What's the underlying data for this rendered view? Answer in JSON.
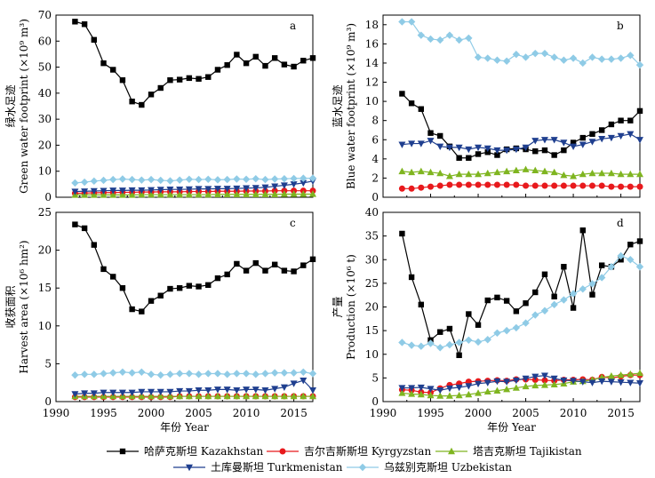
{
  "x_axis_label": "年份 Year",
  "colors": {
    "Kazakhstan": "#000000",
    "Kyrgyzstan": "#e8191c",
    "Tajikistan": "#7fb520",
    "Turkmenistan": "#1f3f8f",
    "Uzbekistan": "#8fcbe6"
  },
  "legend": [
    {
      "key": "Kazakhstan",
      "label": "哈萨克斯坦 Kazakhstan",
      "marker": "square"
    },
    {
      "key": "Kyrgyzstan",
      "label": "吉尔吉斯斯坦 Kyrgyzstan",
      "marker": "circle"
    },
    {
      "key": "Tajikistan",
      "label": "塔吉克斯坦 Tajikistan",
      "marker": "triangle-up"
    },
    {
      "key": "Turkmenistan",
      "label": "土库曼斯坦 Turkmenistan",
      "marker": "triangle-down"
    },
    {
      "key": "Uzbekistan",
      "label": "乌兹别克斯坦 Uzbekistan",
      "marker": "diamond"
    }
  ],
  "chart_data": [
    {
      "id": "a",
      "type": "line",
      "panel_label": "a",
      "ylabel_cn": "绿水足迹",
      "ylabel_en": "Green water footprint (×10⁹ m³)",
      "xlim": [
        1990,
        2017
      ],
      "ylim": [
        0,
        70
      ],
      "xticks": [
        1990,
        1995,
        2000,
        2005,
        2010,
        2015
      ],
      "yticks": [
        0,
        10,
        20,
        30,
        40,
        50,
        60,
        70
      ],
      "show_x_tick_labels": false,
      "x": [
        1992,
        1993,
        1994,
        1995,
        1996,
        1997,
        1998,
        1999,
        2000,
        2001,
        2002,
        2003,
        2004,
        2005,
        2006,
        2007,
        2008,
        2009,
        2010,
        2011,
        2012,
        2013,
        2014,
        2015,
        2016,
        2017
      ],
      "series": [
        {
          "key": "Kazakhstan",
          "values": [
            67.5,
            66.5,
            60.5,
            51.5,
            49.0,
            45.0,
            36.8,
            35.5,
            39.5,
            42.0,
            45.0,
            45.2,
            45.8,
            45.5,
            46.2,
            49.0,
            50.8,
            54.8,
            51.5,
            54.0,
            50.5,
            53.5,
            51.0,
            50.2,
            52.5,
            53.5
          ]
        },
        {
          "key": "Kyrgyzstan",
          "values": [
            1.5,
            1.6,
            1.7,
            1.8,
            1.8,
            1.9,
            1.9,
            2.0,
            2.0,
            2.1,
            2.1,
            2.1,
            2.2,
            2.2,
            2.2,
            2.3,
            2.3,
            2.3,
            2.4,
            2.4,
            2.4,
            2.5,
            2.5,
            2.5,
            2.5,
            2.5
          ]
        },
        {
          "key": "Tajikistan",
          "values": [
            0.9,
            0.9,
            0.9,
            0.9,
            0.9,
            0.9,
            0.9,
            1.0,
            1.0,
            1.0,
            1.0,
            1.0,
            1.0,
            1.0,
            1.0,
            1.1,
            1.1,
            1.1,
            1.1,
            1.1,
            1.1,
            1.1,
            1.2,
            1.2,
            1.2,
            1.2
          ]
        },
        {
          "key": "Turkmenistan",
          "values": [
            2.2,
            2.3,
            2.4,
            2.5,
            2.6,
            2.6,
            2.7,
            2.7,
            2.8,
            2.9,
            3.0,
            3.0,
            3.1,
            3.2,
            3.2,
            3.3,
            3.3,
            3.4,
            3.5,
            3.6,
            3.8,
            4.2,
            4.6,
            5.0,
            5.5,
            6.2
          ]
        },
        {
          "key": "Uzbekistan",
          "values": [
            5.5,
            5.8,
            6.2,
            6.5,
            6.8,
            7.0,
            6.8,
            6.6,
            6.8,
            6.5,
            6.3,
            6.6,
            6.9,
            6.8,
            6.9,
            6.7,
            6.8,
            7.0,
            6.9,
            7.1,
            6.8,
            7.0,
            7.1,
            7.2,
            7.3,
            7.3
          ]
        }
      ]
    },
    {
      "id": "b",
      "type": "line",
      "panel_label": "b",
      "ylabel_cn": "蓝水足迹",
      "ylabel_en": "Blue water footprint (×10⁹ m³)",
      "xlim": [
        1990,
        2017
      ],
      "ylim": [
        0,
        19
      ],
      "xticks": [
        1990,
        1995,
        2000,
        2005,
        2010,
        2015
      ],
      "yticks": [
        0,
        2,
        4,
        6,
        8,
        10,
        12,
        14,
        16,
        18
      ],
      "show_x_tick_labels": false,
      "x": [
        1992,
        1993,
        1994,
        1995,
        1996,
        1997,
        1998,
        1999,
        2000,
        2001,
        2002,
        2003,
        2004,
        2005,
        2006,
        2007,
        2008,
        2009,
        2010,
        2011,
        2012,
        2013,
        2014,
        2015,
        2016,
        2017
      ],
      "series": [
        {
          "key": "Kazakhstan",
          "values": [
            10.8,
            9.8,
            9.2,
            6.7,
            6.4,
            5.3,
            4.1,
            4.1,
            4.5,
            4.7,
            4.4,
            5.0,
            5.1,
            5.0,
            4.8,
            4.9,
            4.4,
            4.9,
            5.7,
            6.2,
            6.6,
            7.0,
            7.6,
            8.0,
            8.0,
            9.0
          ]
        },
        {
          "key": "Kyrgyzstan",
          "values": [
            0.9,
            0.9,
            1.0,
            1.1,
            1.2,
            1.3,
            1.3,
            1.3,
            1.3,
            1.3,
            1.3,
            1.3,
            1.3,
            1.2,
            1.2,
            1.2,
            1.2,
            1.2,
            1.2,
            1.2,
            1.2,
            1.2,
            1.1,
            1.1,
            1.1,
            1.1
          ]
        },
        {
          "key": "Tajikistan",
          "values": [
            2.7,
            2.6,
            2.7,
            2.6,
            2.5,
            2.2,
            2.4,
            2.4,
            2.4,
            2.5,
            2.6,
            2.7,
            2.8,
            2.9,
            2.8,
            2.7,
            2.6,
            2.3,
            2.2,
            2.4,
            2.5,
            2.5,
            2.5,
            2.4,
            2.4,
            2.4
          ]
        },
        {
          "key": "Turkmenistan",
          "values": [
            5.5,
            5.6,
            5.6,
            5.9,
            5.3,
            5.2,
            5.2,
            5.0,
            5.2,
            5.1,
            4.9,
            4.9,
            5.0,
            5.2,
            5.9,
            6.0,
            6.0,
            5.7,
            5.3,
            5.5,
            5.8,
            6.1,
            6.2,
            6.4,
            6.6,
            6.0
          ]
        },
        {
          "key": "Uzbekistan",
          "values": [
            18.3,
            18.3,
            16.9,
            16.5,
            16.4,
            16.9,
            16.4,
            16.6,
            14.6,
            14.5,
            14.3,
            14.2,
            14.9,
            14.6,
            15.0,
            15.0,
            14.6,
            14.3,
            14.5,
            14.0,
            14.6,
            14.4,
            14.4,
            14.5,
            14.8,
            13.8
          ]
        }
      ]
    },
    {
      "id": "c",
      "type": "line",
      "panel_label": "c",
      "ylabel_cn": "收获面积",
      "ylabel_en": "Harvest area (×10⁶ hm²)",
      "xlim": [
        1990,
        2017
      ],
      "ylim": [
        0,
        25
      ],
      "xticks": [
        1990,
        1995,
        2000,
        2005,
        2010,
        2015
      ],
      "yticks": [
        0,
        5,
        10,
        15,
        20,
        25
      ],
      "show_x_tick_labels": true,
      "x": [
        1992,
        1993,
        1994,
        1995,
        1996,
        1997,
        1998,
        1999,
        2000,
        2001,
        2002,
        2003,
        2004,
        2005,
        2006,
        2007,
        2008,
        2009,
        2010,
        2011,
        2012,
        2013,
        2014,
        2015,
        2016,
        2017
      ],
      "series": [
        {
          "key": "Kazakhstan",
          "values": [
            23.4,
            22.9,
            20.7,
            17.5,
            16.5,
            15.0,
            12.2,
            11.9,
            13.3,
            14.0,
            14.9,
            15.0,
            15.3,
            15.2,
            15.4,
            16.3,
            16.8,
            18.2,
            17.3,
            18.3,
            17.3,
            18.1,
            17.3,
            17.2,
            18.0,
            18.8
          ]
        },
        {
          "key": "Kyrgyzstan",
          "values": [
            0.6,
            0.6,
            0.6,
            0.6,
            0.6,
            0.6,
            0.6,
            0.6,
            0.6,
            0.6,
            0.6,
            0.7,
            0.7,
            0.7,
            0.7,
            0.7,
            0.7,
            0.7,
            0.7,
            0.7,
            0.7,
            0.7,
            0.7,
            0.7,
            0.7,
            0.7
          ]
        },
        {
          "key": "Tajikistan",
          "values": [
            0.7,
            0.7,
            0.7,
            0.7,
            0.7,
            0.7,
            0.7,
            0.7,
            0.7,
            0.7,
            0.7,
            0.7,
            0.7,
            0.7,
            0.7,
            0.7,
            0.7,
            0.7,
            0.7,
            0.7,
            0.7,
            0.7,
            0.7,
            0.7,
            0.7,
            0.7
          ]
        },
        {
          "key": "Turkmenistan",
          "values": [
            1.0,
            1.1,
            1.1,
            1.2,
            1.2,
            1.2,
            1.2,
            1.3,
            1.3,
            1.3,
            1.3,
            1.4,
            1.4,
            1.5,
            1.5,
            1.6,
            1.6,
            1.5,
            1.6,
            1.6,
            1.5,
            1.7,
            1.9,
            2.4,
            2.8,
            1.5
          ]
        },
        {
          "key": "Uzbekistan",
          "values": [
            3.5,
            3.6,
            3.6,
            3.7,
            3.8,
            3.9,
            3.8,
            3.9,
            3.6,
            3.5,
            3.6,
            3.7,
            3.7,
            3.6,
            3.7,
            3.7,
            3.6,
            3.7,
            3.7,
            3.6,
            3.7,
            3.8,
            3.8,
            3.8,
            3.9,
            3.7
          ]
        }
      ]
    },
    {
      "id": "d",
      "type": "line",
      "panel_label": "d",
      "ylabel_cn": "产量",
      "ylabel_en": "Production (×10⁶ t)",
      "xlim": [
        1990,
        2017
      ],
      "ylim": [
        0,
        40
      ],
      "xticks": [
        1990,
        1995,
        2000,
        2005,
        2010,
        2015
      ],
      "yticks": [
        0,
        5,
        10,
        15,
        20,
        25,
        30,
        35,
        40
      ],
      "show_x_tick_labels": true,
      "x": [
        1992,
        1993,
        1994,
        1995,
        1996,
        1997,
        1998,
        1999,
        2000,
        2001,
        2002,
        2003,
        2004,
        2005,
        2006,
        2007,
        2008,
        2009,
        2010,
        2011,
        2012,
        2013,
        2014,
        2015,
        2016,
        2017
      ],
      "series": [
        {
          "key": "Kazakhstan",
          "values": [
            35.5,
            26.3,
            20.5,
            13.0,
            14.7,
            15.4,
            9.8,
            18.5,
            16.2,
            21.4,
            22.0,
            21.3,
            19.1,
            20.8,
            23.1,
            26.9,
            22.2,
            28.5,
            19.8,
            36.2,
            22.6,
            28.8,
            28.5,
            30.0,
            33.2,
            33.9
          ]
        },
        {
          "key": "Kyrgyzstan",
          "values": [
            2.5,
            2.4,
            2.0,
            1.9,
            2.8,
            3.5,
            3.8,
            4.2,
            4.3,
            4.4,
            4.5,
            4.4,
            4.7,
            4.7,
            4.6,
            4.5,
            4.4,
            4.6,
            4.6,
            4.7,
            4.6,
            5.2,
            5.0,
            5.3,
            5.6,
            5.6
          ]
        },
        {
          "key": "Tajikistan",
          "values": [
            1.8,
            1.6,
            1.5,
            1.3,
            1.2,
            1.2,
            1.3,
            1.5,
            1.8,
            2.1,
            2.3,
            2.6,
            2.9,
            3.2,
            3.4,
            3.5,
            3.6,
            3.8,
            4.2,
            4.3,
            4.6,
            5.1,
            5.4,
            5.6,
            5.8,
            6.0
          ]
        },
        {
          "key": "Turkmenistan",
          "values": [
            2.9,
            2.9,
            3.0,
            2.7,
            2.4,
            2.8,
            3.0,
            3.3,
            3.8,
            4.0,
            4.3,
            4.2,
            4.5,
            4.9,
            5.3,
            5.5,
            4.9,
            4.5,
            4.4,
            4.2,
            4.0,
            4.3,
            4.2,
            4.1,
            4.0,
            3.9
          ]
        },
        {
          "key": "Uzbekistan",
          "values": [
            12.5,
            11.9,
            11.7,
            12.3,
            11.4,
            12.0,
            12.5,
            13.0,
            12.6,
            13.1,
            14.5,
            15.0,
            15.6,
            16.6,
            18.3,
            19.2,
            20.5,
            21.5,
            22.8,
            23.8,
            24.9,
            26.2,
            28.5,
            30.8,
            30.0,
            28.5
          ]
        }
      ]
    }
  ]
}
